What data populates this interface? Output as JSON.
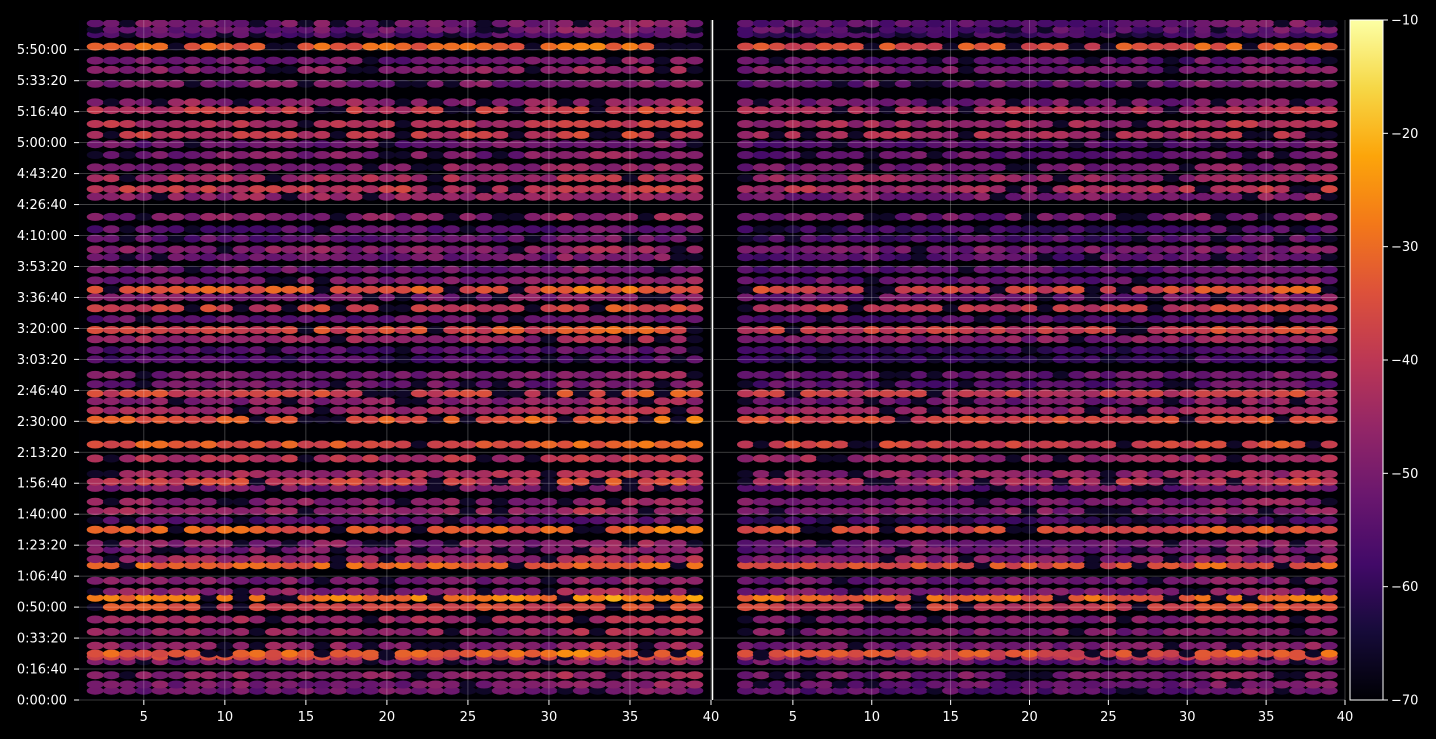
{
  "figure": {
    "background": "#000000",
    "foreground": "#ffffff",
    "colormap": "inferno"
  },
  "chart_data": {
    "type": "heatmap",
    "title": "",
    "xlabel": "",
    "ylabel": "",
    "grid": true,
    "panels": [
      {
        "name": "left",
        "xlim": [
          1,
          40
        ],
        "xticks": [
          5,
          10,
          15,
          20,
          25,
          30,
          35,
          40
        ]
      },
      {
        "name": "right",
        "xlim": [
          0,
          40
        ],
        "xticks": [
          5,
          10,
          15,
          20,
          25,
          30,
          35,
          40
        ]
      }
    ],
    "y_axis": {
      "unit": "h:mm:ss",
      "ylim_seconds": [
        0,
        21960
      ],
      "tick_seconds": [
        0,
        1000,
        2000,
        3000,
        4000,
        5000,
        6000,
        7000,
        8000,
        9000,
        10000,
        11000,
        12000,
        13000,
        14000,
        15000,
        16000,
        17000,
        18000,
        19000,
        20000,
        21000
      ],
      "tick_labels": [
        "0:00:00",
        "0:16:40",
        "0:33:20",
        "0:50:00",
        "1:06:40",
        "1:23:20",
        "1:40:00",
        "1:56:40",
        "2:13:20",
        "2:30:00",
        "2:46:40",
        "3:03:20",
        "3:20:00",
        "3:36:40",
        "3:53:20",
        "4:10:00",
        "4:26:40",
        "4:43:20",
        "5:00:00",
        "5:16:40",
        "5:33:20",
        "5:50:00"
      ]
    },
    "colorbar": {
      "range": [
        -70,
        -10
      ],
      "ticks": [
        -70,
        -60,
        -50,
        -40,
        -30,
        -20,
        -10
      ],
      "tick_labels": [
        "−70",
        "−60",
        "−50",
        "−40",
        "−30",
        "−20",
        "−10"
      ]
    },
    "bands": [
      {
        "t": 300,
        "level": -52
      },
      {
        "t": 500,
        "level": -50
      },
      {
        "t": 800,
        "level": -47
      },
      {
        "t": 1250,
        "level": -50
      },
      {
        "t": 1400,
        "level": -38
      },
      {
        "t": 1500,
        "level": -32
      },
      {
        "t": 1750,
        "level": -48
      },
      {
        "t": 2200,
        "level": -47
      },
      {
        "t": 2600,
        "level": -45
      },
      {
        "t": 3000,
        "level": -36
      },
      {
        "t": 3300,
        "level": -28
      },
      {
        "t": 3500,
        "level": -48
      },
      {
        "t": 3850,
        "level": -50
      },
      {
        "t": 4350,
        "level": -32
      },
      {
        "t": 4550,
        "level": -46
      },
      {
        "t": 4850,
        "level": -50
      },
      {
        "t": 5050,
        "level": -48
      },
      {
        "t": 5500,
        "level": -33
      },
      {
        "t": 5800,
        "level": -56
      },
      {
        "t": 6100,
        "level": -46
      },
      {
        "t": 6400,
        "level": -48
      },
      {
        "t": 6850,
        "level": -50
      },
      {
        "t": 7050,
        "level": -38
      },
      {
        "t": 7300,
        "level": -44
      },
      {
        "t": 7800,
        "level": -42
      },
      {
        "t": 8250,
        "level": -34
      },
      {
        "t": 9050,
        "level": -33
      },
      {
        "t": 9350,
        "level": -44
      },
      {
        "t": 9650,
        "level": -48
      },
      {
        "t": 9900,
        "level": -37
      },
      {
        "t": 10200,
        "level": -52
      },
      {
        "t": 10500,
        "level": -50
      },
      {
        "t": 11000,
        "level": -58
      },
      {
        "t": 11300,
        "level": -56
      },
      {
        "t": 11650,
        "level": -46
      },
      {
        "t": 11950,
        "level": -36
      },
      {
        "t": 12300,
        "level": -54
      },
      {
        "t": 12650,
        "level": -38
      },
      {
        "t": 13000,
        "level": -50
      },
      {
        "t": 13250,
        "level": -34
      },
      {
        "t": 13550,
        "level": -50
      },
      {
        "t": 13900,
        "level": -52
      },
      {
        "t": 14300,
        "level": -52
      },
      {
        "t": 14550,
        "level": -48
      },
      {
        "t": 14900,
        "level": -54
      },
      {
        "t": 15200,
        "level": -55
      },
      {
        "t": 15600,
        "level": -49
      },
      {
        "t": 16250,
        "level": -47
      },
      {
        "t": 16500,
        "level": -40
      },
      {
        "t": 16850,
        "level": -44
      },
      {
        "t": 17200,
        "level": -48
      },
      {
        "t": 17600,
        "level": -50
      },
      {
        "t": 17950,
        "level": -52
      },
      {
        "t": 18250,
        "level": -40
      },
      {
        "t": 18600,
        "level": -42
      },
      {
        "t": 19050,
        "level": -40
      },
      {
        "t": 19300,
        "level": -47
      },
      {
        "t": 19900,
        "level": -50
      },
      {
        "t": 20350,
        "level": -48
      },
      {
        "t": 20650,
        "level": -52
      },
      {
        "t": 21100,
        "level": -32
      },
      {
        "t": 21500,
        "level": -56
      },
      {
        "t": 21650,
        "level": -52
      },
      {
        "t": 21850,
        "level": -51
      }
    ]
  }
}
